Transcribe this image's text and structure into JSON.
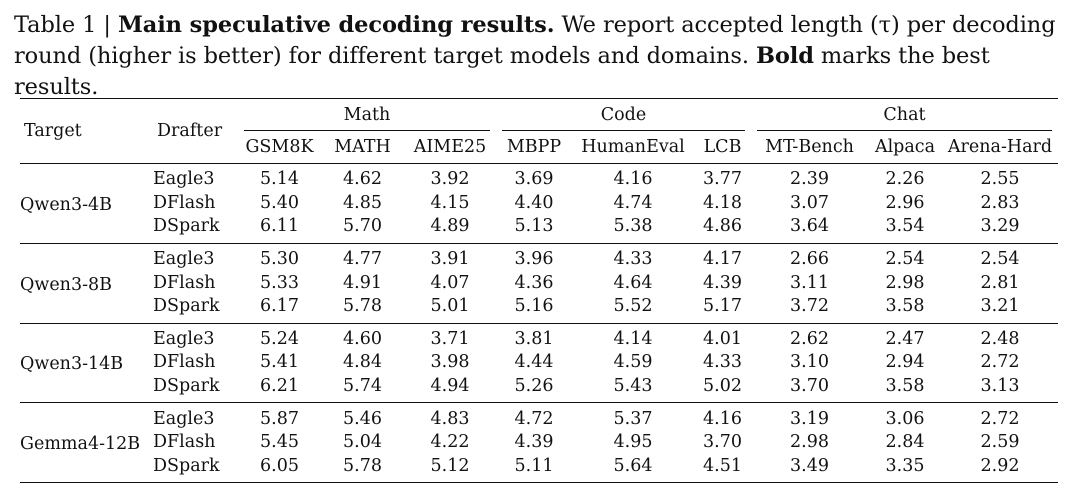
{
  "caption": {
    "label": "Table 1 | ",
    "title": "Main speculative decoding results.",
    "text_a": " We report accepted length (τ) per decoding round (higher is better) for different target models and domains. ",
    "bold_word": "Bold",
    "text_b": " marks the best results."
  },
  "table": {
    "col_target": "Target",
    "col_drafter": "Drafter",
    "groups": [
      "Math",
      "Code",
      "Chat"
    ],
    "datasets": [
      "GSM8K",
      "MATH",
      "AIME25",
      "MBPP",
      "HumanEval",
      "LCB",
      "MT-Bench",
      "Alpaca",
      "Arena-Hard"
    ],
    "blocks": [
      {
        "target": "Qwen3-4B",
        "rows": [
          {
            "drafter": "Eagle3",
            "values": [
              "5.14",
              "4.62",
              "3.92",
              "3.69",
              "4.16",
              "3.77",
              "2.39",
              "2.26",
              "2.55"
            ]
          },
          {
            "drafter": "DFlash",
            "values": [
              "5.40",
              "4.85",
              "4.15",
              "4.40",
              "4.74",
              "4.18",
              "3.07",
              "2.96",
              "2.83"
            ]
          },
          {
            "drafter": "DSpark",
            "values": [
              "6.11",
              "5.70",
              "4.89",
              "5.13",
              "5.38",
              "4.86",
              "3.64",
              "3.54",
              "3.29"
            ]
          }
        ]
      },
      {
        "target": "Qwen3-8B",
        "rows": [
          {
            "drafter": "Eagle3",
            "values": [
              "5.30",
              "4.77",
              "3.91",
              "3.96",
              "4.33",
              "4.17",
              "2.66",
              "2.54",
              "2.54"
            ]
          },
          {
            "drafter": "DFlash",
            "values": [
              "5.33",
              "4.91",
              "4.07",
              "4.36",
              "4.64",
              "4.39",
              "3.11",
              "2.98",
              "2.81"
            ]
          },
          {
            "drafter": "DSpark",
            "values": [
              "6.17",
              "5.78",
              "5.01",
              "5.16",
              "5.52",
              "5.17",
              "3.72",
              "3.58",
              "3.21"
            ]
          }
        ]
      },
      {
        "target": "Qwen3-14B",
        "rows": [
          {
            "drafter": "Eagle3",
            "values": [
              "5.24",
              "4.60",
              "3.71",
              "3.81",
              "4.14",
              "4.01",
              "2.62",
              "2.47",
              "2.48"
            ]
          },
          {
            "drafter": "DFlash",
            "values": [
              "5.41",
              "4.84",
              "3.98",
              "4.44",
              "4.59",
              "4.33",
              "3.10",
              "2.94",
              "2.72"
            ]
          },
          {
            "drafter": "DSpark",
            "values": [
              "6.21",
              "5.74",
              "4.94",
              "5.26",
              "5.43",
              "5.02",
              "3.70",
              "3.58",
              "3.13"
            ]
          }
        ]
      },
      {
        "target": "Gemma4-12B",
        "rows": [
          {
            "drafter": "Eagle3",
            "values": [
              "5.87",
              "5.46",
              "4.83",
              "4.72",
              "5.37",
              "4.16",
              "3.19",
              "3.06",
              "2.72"
            ]
          },
          {
            "drafter": "DFlash",
            "values": [
              "5.45",
              "5.04",
              "4.22",
              "4.39",
              "4.95",
              "3.70",
              "2.98",
              "2.84",
              "2.59"
            ]
          },
          {
            "drafter": "DSpark",
            "values": [
              "6.05",
              "5.78",
              "5.12",
              "5.11",
              "5.64",
              "4.51",
              "3.49",
              "3.35",
              "2.92"
            ]
          }
        ]
      }
    ],
    "best_drafter": "DSpark"
  }
}
